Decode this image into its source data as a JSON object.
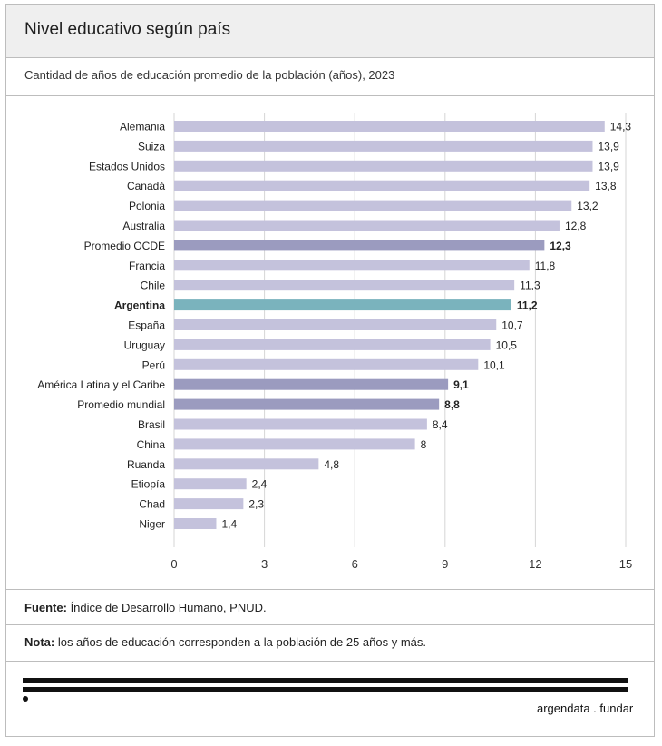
{
  "header": {
    "title": "Nivel educativo según país"
  },
  "subtitle": "Cantidad de años de educación promedio de la población (años), 2023",
  "chart_data": {
    "type": "bar",
    "orientation": "horizontal",
    "categories": [
      "Alemania",
      "Suiza",
      "Estados Unidos",
      "Canadá",
      "Polonia",
      "Australia",
      "Promedio OCDE",
      "Francia",
      "Chile",
      "Argentina",
      "España",
      "Uruguay",
      "Perú",
      "América Latina y el Caribe",
      "Promedio mundial",
      "Brasil",
      "China",
      "Ruanda",
      "Etiopía",
      "Chad",
      "Niger"
    ],
    "values": [
      14.3,
      13.9,
      13.9,
      13.8,
      13.2,
      12.8,
      12.3,
      11.8,
      11.3,
      11.2,
      10.7,
      10.5,
      10.1,
      9.1,
      8.8,
      8.4,
      8,
      4.8,
      2.4,
      2.3,
      1.4
    ],
    "value_labels": [
      "14,3",
      "13,9",
      "13,9",
      "13,8",
      "13,2",
      "12,8",
      "12,3",
      "11,8",
      "11,3",
      "11,2",
      "10,7",
      "10,5",
      "10,1",
      "9,1",
      "8,8",
      "8,4",
      "8",
      "4,8",
      "2,4",
      "2,3",
      "1,4"
    ],
    "highlight": [
      "normal",
      "normal",
      "normal",
      "normal",
      "normal",
      "normal",
      "aggregate",
      "normal",
      "normal",
      "focus",
      "normal",
      "normal",
      "normal",
      "aggregate",
      "aggregate",
      "normal",
      "normal",
      "normal",
      "normal",
      "normal",
      "normal"
    ],
    "xlim": [
      0,
      15
    ],
    "xticks": [
      "0",
      "3",
      "6",
      "9",
      "12",
      "15"
    ],
    "grid": true,
    "colors": {
      "normal": "#c4c2dc",
      "aggregate": "#9b9bbf",
      "focus": "#7ab3bd",
      "grid": "#d6d6d6"
    }
  },
  "source": {
    "label": "Fuente:",
    "text": " Índice de Desarrollo Humano, PNUD."
  },
  "note": {
    "label": "Nota:",
    "text": " los años de educación corresponden a la población de 25 años y más."
  },
  "brand": "argendata . fundar"
}
